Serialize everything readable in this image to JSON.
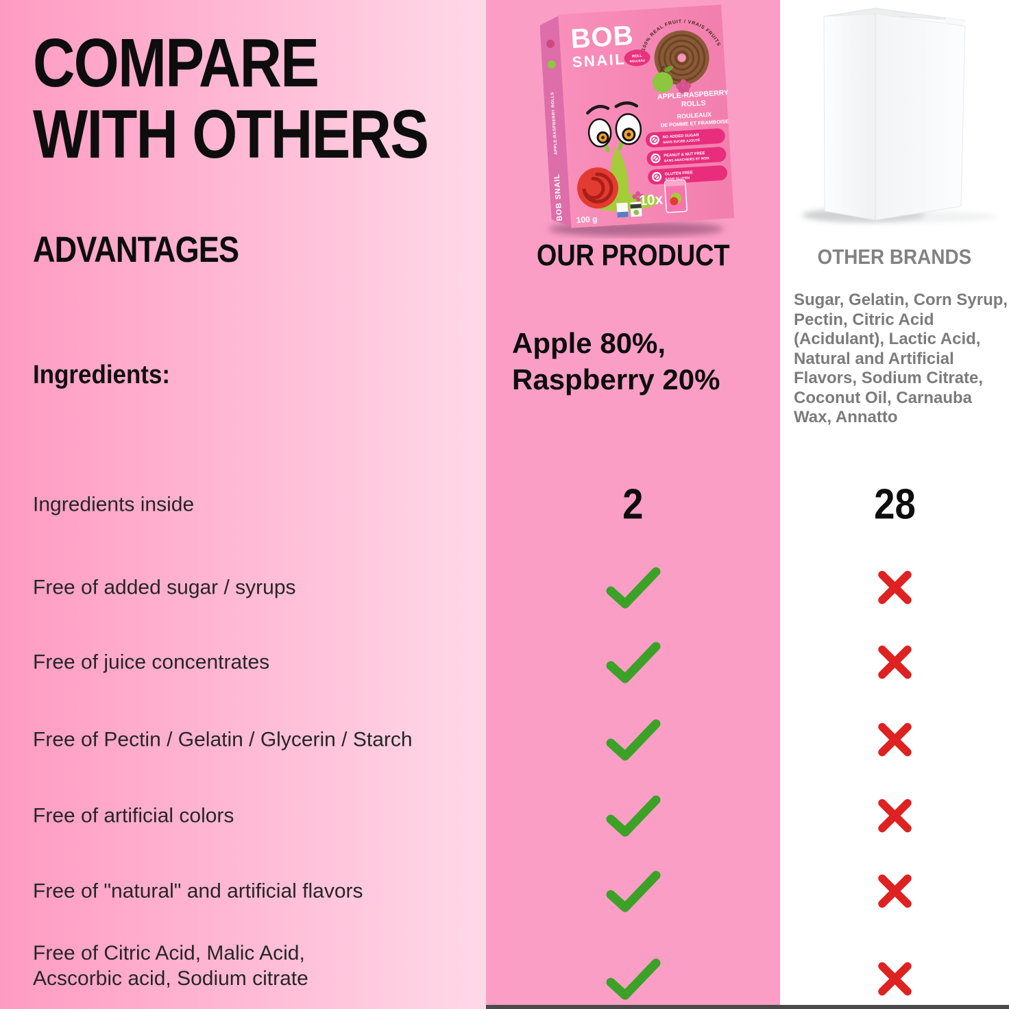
{
  "colors": {
    "left_gradient_start": "#ff9bc2",
    "left_gradient_end": "#ffd9e9",
    "mid_column_bg": "#fb9ec6",
    "right_column_bg": "#ffffff",
    "check_green": "#3ba227",
    "cross_red": "#de2121",
    "title_black": "#0d0d0d",
    "gray_text": "#7b7b7b",
    "box_front_pink": "#f584b4",
    "box_spine_pink": "#dd6ea9",
    "badge_magenta": "#e82d7d",
    "bottom_bar_gray": "#4a4a4a"
  },
  "header": {
    "title_line1": "COMPARE",
    "title_line2": "WITH OTHERS",
    "subtitle": "ADVANTAGES"
  },
  "comparison": {
    "ingredients_label": "Ingredients:",
    "our_column_header": "OUR PRODUCT",
    "other_column_header": "OTHER BRANDS",
    "our_ingredients_line1": "Apple 80%,",
    "our_ingredients_line2": "Raspberry 20%",
    "other_ingredients": "Sugar, Gelatin, Corn Syrup, Pectin, Citric Acid (Acidulant), Lactic Acid, Natural and Artificial Flavors, Sodium Citrate, Coconut Oil, Carnauba Wax, Annatto",
    "rows": [
      {
        "label": "Ingredients inside",
        "our": "2",
        "other": "28"
      },
      {
        "label": "Free of added sugar / syrups",
        "our": "check",
        "other": "cross"
      },
      {
        "label": "Free of juice concentrates",
        "our": "check",
        "other": "cross"
      },
      {
        "label": "Free of Pectin / Gelatin / Glycerin / Starch",
        "our": "check",
        "other": "cross"
      },
      {
        "label": "Free of artificial colors",
        "our": "check",
        "other": "cross"
      },
      {
        "label": "Free of \"natural\" and artificial flavors",
        "our": "check",
        "other": "cross"
      },
      {
        "label": "Free of Citric Acid, Malic Acid,\nAcscorbic acid, Sodium citrate",
        "our": "check",
        "other": "cross"
      }
    ]
  },
  "product_box": {
    "brand_line1": "BOB",
    "brand_line2": "SNAIL",
    "logo_tag_line1": "ROLL",
    "logo_tag_line2": "ROULEAU",
    "arc_text": "100% REAL FRUIT / VRAIS FRUITS",
    "name_en_line1": "APPLE-RASPBERRY",
    "name_en_line2": "ROLLS",
    "name_fr_line1": "ROULEAUX",
    "name_fr_line2": "DE POMME ET FRAMBOISE",
    "badges": [
      {
        "line1": "NO ADDED SUGAR",
        "line2": "SANS SUCRE AJOUTÉ"
      },
      {
        "line1": "PEANUT & NUT FREE",
        "line2": "SANS ARACHIDES ET NOIX"
      },
      {
        "line1": "GLUTEN FREE",
        "line2": "SANS GLUTEN"
      }
    ],
    "count": "10x",
    "weight": "100 g",
    "spine_brand": "BOB SNAIL",
    "spine_name": "APPLE-RASPBERRY ROLLS"
  }
}
